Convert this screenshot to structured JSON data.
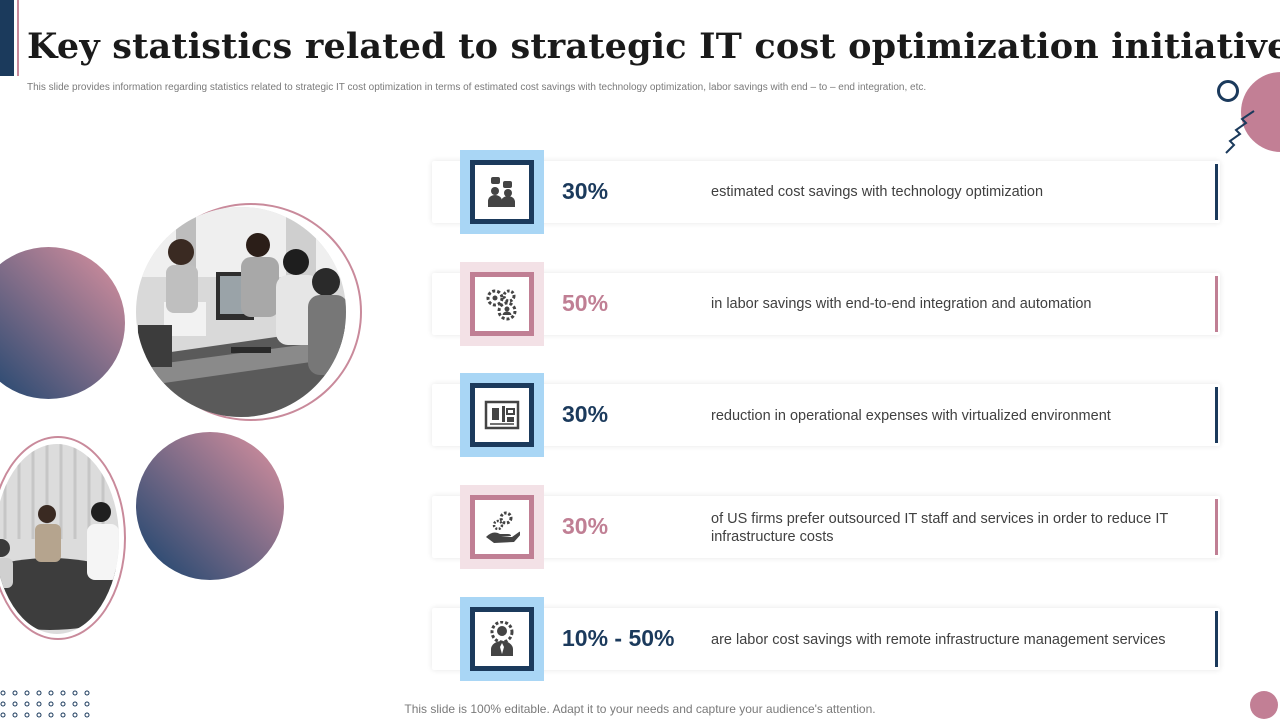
{
  "title": "Key statistics related to strategic IT cost optimization initiatives",
  "subtitle": "This slide provides information regarding statistics related to strategic IT  cost optimization  in terms of estimated cost savings with technology optimization, labor savings with end – to – end integration,  etc.",
  "colors": {
    "navy": "#1b3a5c",
    "pink": "#c07f94",
    "light_blue": "#a9d6f5",
    "light_pink": "#f3e1e6"
  },
  "stats": [
    {
      "value": "30%",
      "text": "estimated cost savings with technology optimization",
      "icon": "people-chat-icon",
      "theme": "navy"
    },
    {
      "value": "50%",
      "text": "in labor savings with end-to-end integration and automation",
      "icon": "gears-person-icon",
      "theme": "pink"
    },
    {
      "value": "30%",
      "text": "reduction in operational expenses with virtualized environment",
      "icon": "blueprint-board-icon",
      "theme": "navy"
    },
    {
      "value": "30%",
      "text": "of US firms prefer outsourced IT staff and services in order to reduce IT infrastructure costs",
      "icon": "hand-gear-icon",
      "theme": "pink"
    },
    {
      "value": "10% - 50%",
      "text": "are labor cost savings with remote infrastructure management services",
      "icon": "person-gear-badge-icon",
      "theme": "navy"
    }
  ],
  "footer": "This slide is 100% editable. Adapt it to your needs and capture your audience's attention."
}
